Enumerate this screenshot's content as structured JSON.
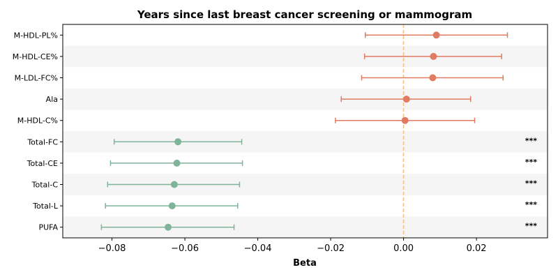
{
  "chart_data": {
    "type": "forest",
    "title": "Years since last breast cancer screening  or  mammogram",
    "xlabel": "Beta",
    "ylabel": "",
    "xlim": [
      -0.0935,
      0.0395
    ],
    "xticks": [
      -0.08,
      -0.06,
      -0.04,
      -0.02,
      0.0,
      0.02
    ],
    "xtick_labels": [
      "−0.08",
      "−0.06",
      "−0.04",
      "−0.02",
      "0.00",
      "0.02"
    ],
    "reference_line": 0.0,
    "colors": {
      "positive": "#e07b62",
      "negative": "#7fb39a",
      "reference": "#f5c17a",
      "band": "#f5f5f5"
    },
    "rows": [
      {
        "label": "M-HDL-PL%",
        "beta": 0.009,
        "lower": -0.0105,
        "upper": 0.0285,
        "sig": ""
      },
      {
        "label": "M-HDL-CE%",
        "beta": 0.0082,
        "lower": -0.0107,
        "upper": 0.0269,
        "sig": ""
      },
      {
        "label": "M-LDL-FC%",
        "beta": 0.008,
        "lower": -0.0115,
        "upper": 0.0273,
        "sig": ""
      },
      {
        "label": "Ala",
        "beta": 0.0008,
        "lower": -0.0171,
        "upper": 0.0184,
        "sig": ""
      },
      {
        "label": "M-HDL-C%",
        "beta": 0.0004,
        "lower": -0.0187,
        "upper": 0.0195,
        "sig": ""
      },
      {
        "label": "Total-FC",
        "beta": -0.0619,
        "lower": -0.0794,
        "upper": -0.0444,
        "sig": "***"
      },
      {
        "label": "Total-CE",
        "beta": -0.0622,
        "lower": -0.0804,
        "upper": -0.0442,
        "sig": "***"
      },
      {
        "label": "Total-C",
        "beta": -0.0629,
        "lower": -0.0812,
        "upper": -0.045,
        "sig": "***"
      },
      {
        "label": "Total-L",
        "beta": -0.0635,
        "lower": -0.0818,
        "upper": -0.0455,
        "sig": "***"
      },
      {
        "label": "PUFA",
        "beta": -0.0646,
        "lower": -0.0829,
        "upper": -0.0465,
        "sig": "***"
      }
    ]
  }
}
